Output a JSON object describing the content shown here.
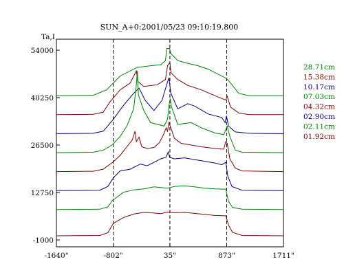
{
  "chart_data": {
    "type": "line",
    "title": "SUN_A+0:2001/05/23 09:10:19.800",
    "ylabel": "Ta,I",
    "xlabel": "",
    "x_ticks": [
      "-1640\"",
      "-802\"",
      "35\"",
      "873\"",
      "1711\""
    ],
    "x_tick_values": [
      -1640,
      -802,
      35,
      873,
      1711
    ],
    "xlim": [
      -1640,
      1711
    ],
    "y_ticks": [
      "54000",
      "40250",
      "26500",
      "12750",
      "-1000"
    ],
    "y_tick_values": [
      54000,
      40250,
      26500,
      12750,
      -1000
    ],
    "ylim": [
      -1000,
      54000
    ],
    "grid": false,
    "reference_lines_x": [
      -802,
      35,
      873
    ],
    "legend_position": "right",
    "series": [
      {
        "name": "28.71cm",
        "color": "#008000",
        "values": [
          [
            -1640,
            40800
          ],
          [
            -1100,
            40900
          ],
          [
            -900,
            42500
          ],
          [
            -700,
            46500
          ],
          [
            -450,
            49000
          ],
          [
            -250,
            49500
          ],
          [
            -100,
            49800
          ],
          [
            -30,
            51000
          ],
          [
            -10,
            54500
          ],
          [
            30,
            54500
          ],
          [
            50,
            53000
          ],
          [
            150,
            51000
          ],
          [
            300,
            50200
          ],
          [
            450,
            49500
          ],
          [
            600,
            48500
          ],
          [
            750,
            47000
          ],
          [
            870,
            45800
          ],
          [
            950,
            44000
          ],
          [
            1050,
            41500
          ],
          [
            1200,
            40800
          ],
          [
            1711,
            40800
          ]
        ]
      },
      {
        "name": "15.38cm",
        "color": "#800000",
        "values": [
          [
            -1640,
            35300
          ],
          [
            -1100,
            35400
          ],
          [
            -950,
            36000
          ],
          [
            -850,
            39000
          ],
          [
            -700,
            42500
          ],
          [
            -550,
            44500
          ],
          [
            -460,
            48000
          ],
          [
            -440,
            45000
          ],
          [
            -350,
            43500
          ],
          [
            -150,
            44000
          ],
          [
            -30,
            45500
          ],
          [
            0,
            49500
          ],
          [
            35,
            50500
          ],
          [
            50,
            47500
          ],
          [
            150,
            45500
          ],
          [
            300,
            43800
          ],
          [
            500,
            42500
          ],
          [
            700,
            40800
          ],
          [
            830,
            39800
          ],
          [
            860,
            39600
          ],
          [
            880,
            40700
          ],
          [
            930,
            37500
          ],
          [
            1050,
            35800
          ],
          [
            1200,
            35300
          ],
          [
            1711,
            35300
          ]
        ]
      },
      {
        "name": "10.17cm",
        "color": "#000080",
        "values": [
          [
            -1640,
            29800
          ],
          [
            -1100,
            29900
          ],
          [
            -950,
            30500
          ],
          [
            -820,
            33500
          ],
          [
            -650,
            38000
          ],
          [
            -500,
            41500
          ],
          [
            -420,
            43000
          ],
          [
            -330,
            39500
          ],
          [
            -200,
            36500
          ],
          [
            -80,
            39500
          ],
          [
            -20,
            43500
          ],
          [
            20,
            46000
          ],
          [
            50,
            41500
          ],
          [
            150,
            37000
          ],
          [
            300,
            38500
          ],
          [
            400,
            37800
          ],
          [
            600,
            35500
          ],
          [
            800,
            34500
          ],
          [
            850,
            33000
          ],
          [
            870,
            35000
          ],
          [
            900,
            32000
          ],
          [
            1000,
            30300
          ],
          [
            1200,
            29900
          ],
          [
            1711,
            29800
          ]
        ]
      },
      {
        "name": "07.03cm",
        "color": "#008000",
        "values": [
          [
            -1640,
            24300
          ],
          [
            -1100,
            24400
          ],
          [
            -950,
            25000
          ],
          [
            -820,
            26500
          ],
          [
            -700,
            29000
          ],
          [
            -600,
            32000
          ],
          [
            -500,
            37000
          ],
          [
            -465,
            43000
          ],
          [
            -445,
            48000
          ],
          [
            -430,
            41000
          ],
          [
            -350,
            36500
          ],
          [
            -250,
            33000
          ],
          [
            -150,
            32500
          ],
          [
            -50,
            32000
          ],
          [
            0,
            34000
          ],
          [
            20,
            37800
          ],
          [
            40,
            40000
          ],
          [
            60,
            37500
          ],
          [
            150,
            32500
          ],
          [
            350,
            33000
          ],
          [
            500,
            31500
          ],
          [
            700,
            30000
          ],
          [
            830,
            29500
          ],
          [
            860,
            31000
          ],
          [
            880,
            32000
          ],
          [
            920,
            29000
          ],
          [
            1000,
            25000
          ],
          [
            1100,
            24400
          ],
          [
            1711,
            24300
          ]
        ]
      },
      {
        "name": "04.32cm",
        "color": "#800000",
        "values": [
          [
            -1640,
            18800
          ],
          [
            -1100,
            18900
          ],
          [
            -950,
            19500
          ],
          [
            -810,
            21500
          ],
          [
            -700,
            23500
          ],
          [
            -600,
            26000
          ],
          [
            -520,
            28000
          ],
          [
            -480,
            30500
          ],
          [
            -460,
            27500
          ],
          [
            -420,
            28800
          ],
          [
            -380,
            26000
          ],
          [
            -300,
            25500
          ],
          [
            -200,
            25800
          ],
          [
            -120,
            27200
          ],
          [
            -60,
            29500
          ],
          [
            -20,
            31500
          ],
          [
            0,
            30500
          ],
          [
            20,
            33000
          ],
          [
            50,
            31500
          ],
          [
            100,
            28500
          ],
          [
            200,
            27000
          ],
          [
            350,
            26500
          ],
          [
            500,
            26000
          ],
          [
            700,
            25500
          ],
          [
            830,
            25300
          ],
          [
            860,
            27500
          ],
          [
            880,
            27000
          ],
          [
            920,
            22500
          ],
          [
            1000,
            19800
          ],
          [
            1100,
            19000
          ],
          [
            1711,
            18800
          ]
        ]
      },
      {
        "name": "02.90cm",
        "color": "#000080",
        "values": [
          [
            -1640,
            13300
          ],
          [
            -1000,
            13400
          ],
          [
            -880,
            14500
          ],
          [
            -800,
            17000
          ],
          [
            -700,
            19000
          ],
          [
            -550,
            19500
          ],
          [
            -400,
            21000
          ],
          [
            -300,
            20500
          ],
          [
            -200,
            21500
          ],
          [
            -100,
            22500
          ],
          [
            -20,
            23000
          ],
          [
            10,
            24500
          ],
          [
            30,
            23000
          ],
          [
            100,
            22500
          ],
          [
            250,
            22800
          ],
          [
            400,
            22300
          ],
          [
            550,
            21800
          ],
          [
            700,
            21300
          ],
          [
            800,
            20800
          ],
          [
            860,
            21500
          ],
          [
            890,
            17500
          ],
          [
            950,
            14500
          ],
          [
            1100,
            13400
          ],
          [
            1711,
            13300
          ]
        ]
      },
      {
        "name": "02.11cm",
        "color": "#008000",
        "values": [
          [
            -1640,
            7800
          ],
          [
            -1000,
            7900
          ],
          [
            -880,
            8600
          ],
          [
            -810,
            10500
          ],
          [
            -650,
            12800
          ],
          [
            -500,
            13500
          ],
          [
            -350,
            13800
          ],
          [
            -200,
            14400
          ],
          [
            -100,
            14200
          ],
          [
            0,
            14000
          ],
          [
            100,
            14500
          ],
          [
            250,
            14700
          ],
          [
            400,
            14400
          ],
          [
            550,
            14000
          ],
          [
            700,
            13800
          ],
          [
            860,
            13700
          ],
          [
            900,
            10200
          ],
          [
            960,
            8400
          ],
          [
            1100,
            7900
          ],
          [
            1711,
            7800
          ]
        ]
      },
      {
        "name": "01.92cm",
        "color": "#800000",
        "values": [
          [
            -1640,
            200
          ],
          [
            -1000,
            300
          ],
          [
            -880,
            1100
          ],
          [
            -800,
            3800
          ],
          [
            -650,
            5500
          ],
          [
            -500,
            6500
          ],
          [
            -350,
            7000
          ],
          [
            -200,
            6800
          ],
          [
            -100,
            6600
          ],
          [
            0,
            7100
          ],
          [
            100,
            6900
          ],
          [
            250,
            7000
          ],
          [
            400,
            6700
          ],
          [
            550,
            6400
          ],
          [
            700,
            6100
          ],
          [
            860,
            6000
          ],
          [
            900,
            3300
          ],
          [
            960,
            1200
          ],
          [
            1100,
            300
          ],
          [
            1711,
            200
          ]
        ]
      }
    ]
  }
}
